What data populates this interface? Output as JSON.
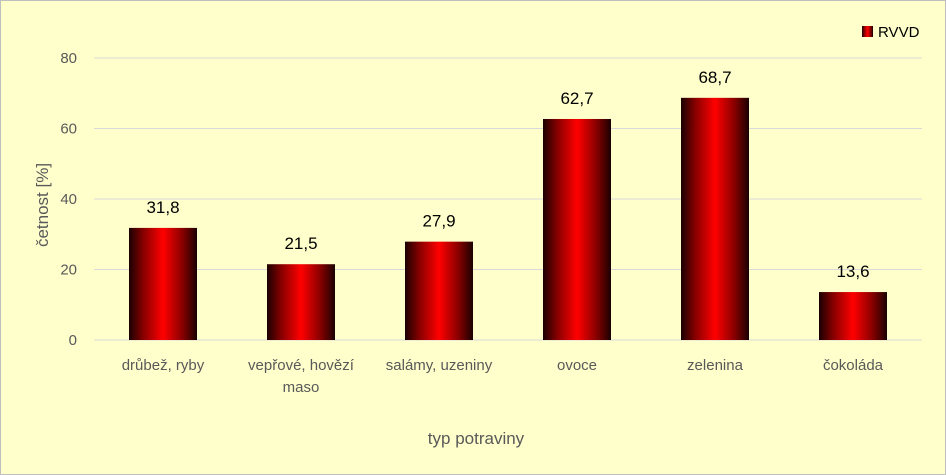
{
  "chart_data": {
    "type": "bar",
    "categories": [
      [
        "drůbež, ryby"
      ],
      [
        "vepřové, hovězí",
        "maso"
      ],
      [
        "salámy, uzeniny"
      ],
      [
        "ovoce"
      ],
      [
        "zelenina"
      ],
      [
        "čokoláda"
      ]
    ],
    "series": [
      {
        "name": "RVVD",
        "values": [
          31.8,
          21.5,
          27.9,
          62.7,
          68.7,
          13.6
        ],
        "labels": [
          "31,8",
          "21,5",
          "27,9",
          "62,7",
          "68,7",
          "13,6"
        ]
      }
    ],
    "xlabel": "typ potraviny",
    "ylabel": "četnost [%]",
    "ylim": [
      0,
      80
    ],
    "yticks": [
      "0",
      "20",
      "40",
      "60",
      "80"
    ],
    "grid": true,
    "legend_position": "top-right",
    "colors": {
      "background": "#ffffcc",
      "bar_center": "#ff0000",
      "bar_edge": "#1a0000",
      "grid": "#d9d9d9",
      "axis_text": "#595959"
    }
  }
}
